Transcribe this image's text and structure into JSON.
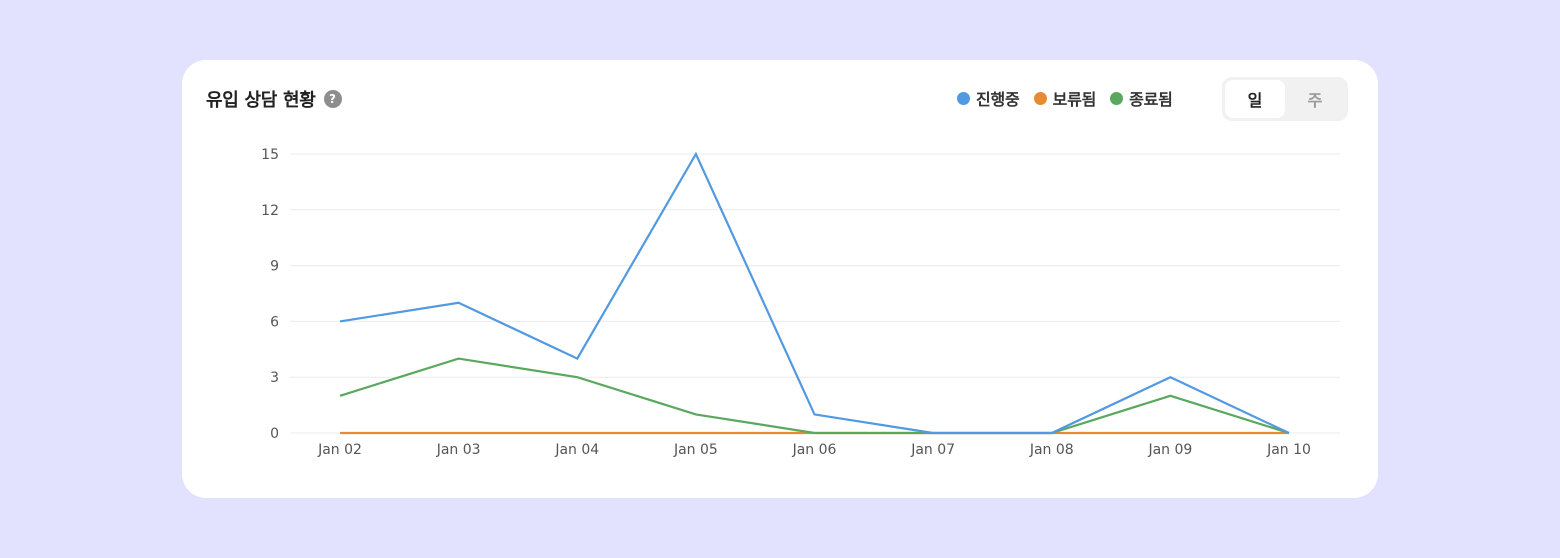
{
  "card": {
    "title": "유입 상담 현황",
    "help_icon": "question-circle-icon"
  },
  "legend": [
    {
      "label": "진행중",
      "color": "#5199e1"
    },
    {
      "label": "보류됨",
      "color": "#e88a33"
    },
    {
      "label": "종료됨",
      "color": "#5aa85e"
    }
  ],
  "toggle": {
    "options": [
      "일",
      "주"
    ],
    "selected": "일"
  },
  "chart_data": {
    "type": "line",
    "categories": [
      "Jan 02",
      "Jan 03",
      "Jan 04",
      "Jan 05",
      "Jan 06",
      "Jan 07",
      "Jan 08",
      "Jan 09",
      "Jan 10"
    ],
    "series": [
      {
        "name": "진행중",
        "color": "#5199e1",
        "values": [
          6,
          7,
          4,
          15,
          1,
          0,
          0,
          3,
          0
        ]
      },
      {
        "name": "보류됨",
        "color": "#e88a33",
        "values": [
          0,
          0,
          0,
          0,
          0,
          0,
          0,
          0,
          0
        ]
      },
      {
        "name": "종료됨",
        "color": "#5aa85e",
        "values": [
          2,
          4,
          3,
          1,
          0,
          0,
          0,
          2,
          0
        ]
      }
    ],
    "yticks": [
      0,
      3,
      6,
      9,
      12,
      15
    ],
    "ylim": [
      0,
      15
    ],
    "grid": true,
    "legend_position": "top-right"
  }
}
